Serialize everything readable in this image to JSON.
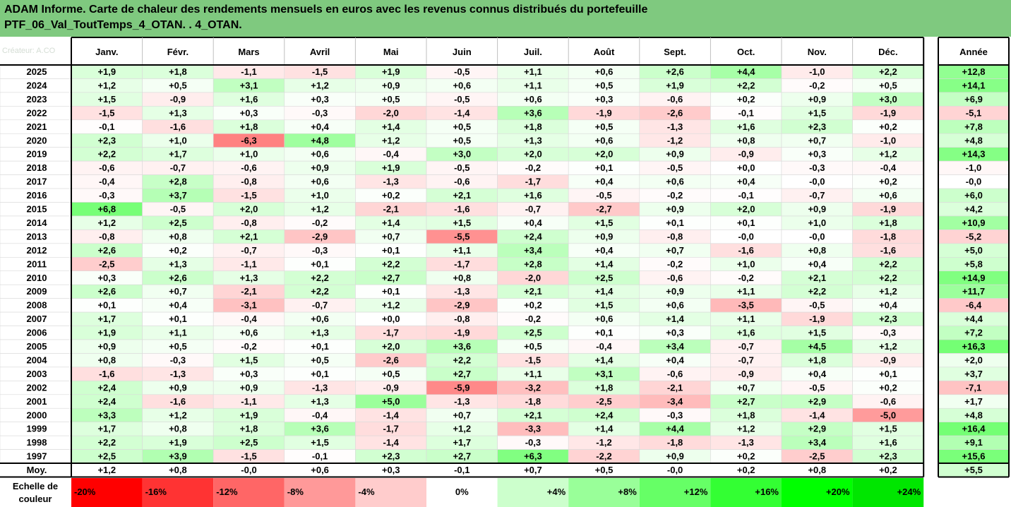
{
  "title": {
    "line1": "ADAM Informe. Carte de chaleur des rendements mensuels en euros avec les revenus connus distribués du portefeuille",
    "line2": "PTF_06_Val_ToutTemps_4_OTAN. . 4_OTAN."
  },
  "watermark": "Créateur: A.CO",
  "chart_data": {
    "type": "heatmap",
    "months": [
      "Janv.",
      "Févr.",
      "Mars",
      "Avril",
      "Mai",
      "Juin",
      "Juil.",
      "Août",
      "Sept.",
      "Oct.",
      "Nov.",
      "Déc."
    ],
    "year_header": "Année",
    "rows": [
      {
        "year": "2025",
        "values": [
          "+1,9",
          "+1,8",
          "-1,1",
          "-1,5",
          "+1,9",
          "-0,5",
          "+1,1",
          "+0,6",
          "+2,6",
          "+4,4",
          "-1,0",
          "+2,2"
        ],
        "annual": "+12,8"
      },
      {
        "year": "2024",
        "values": [
          "+1,2",
          "+0,5",
          "+3,1",
          "+1,2",
          "+0,9",
          "+0,6",
          "+1,1",
          "+0,5",
          "+1,9",
          "+2,2",
          "-0,2",
          "+0,5"
        ],
        "annual": "+14,1"
      },
      {
        "year": "2023",
        "values": [
          "+1,5",
          "-0,9",
          "+1,6",
          "+0,3",
          "+0,5",
          "-0,5",
          "+0,6",
          "+0,3",
          "-0,6",
          "+0,2",
          "+0,9",
          "+3,0"
        ],
        "annual": "+6,9"
      },
      {
        "year": "2022",
        "values": [
          "-1,5",
          "+1,3",
          "+0,3",
          "-0,3",
          "-2,0",
          "-1,4",
          "+3,6",
          "-1,9",
          "-2,6",
          "-0,1",
          "+1,5",
          "-1,9"
        ],
        "annual": "-5,1"
      },
      {
        "year": "2021",
        "values": [
          "-0,1",
          "-1,6",
          "+1,8",
          "+0,4",
          "+1,4",
          "+0,5",
          "+1,8",
          "+0,5",
          "-1,3",
          "+1,6",
          "+2,3",
          "+0,2"
        ],
        "annual": "+7,8"
      },
      {
        "year": "2020",
        "values": [
          "+2,3",
          "+1,0",
          "-6,3",
          "+4,8",
          "+1,2",
          "+0,5",
          "+1,3",
          "+0,6",
          "-1,2",
          "+0,8",
          "+0,7",
          "-1,0"
        ],
        "annual": "+4,8"
      },
      {
        "year": "2019",
        "values": [
          "+2,2",
          "+1,7",
          "+1,0",
          "+0,6",
          "-0,4",
          "+3,0",
          "+2,0",
          "+2,0",
          "+0,9",
          "-0,9",
          "+0,3",
          "+1,2"
        ],
        "annual": "+14,3"
      },
      {
        "year": "2018",
        "values": [
          "-0,6",
          "-0,7",
          "-0,6",
          "+0,9",
          "+1,9",
          "-0,5",
          "-0,2",
          "+0,1",
          "-0,5",
          "+0,0",
          "-0,3",
          "-0,4"
        ],
        "annual": "-1,0"
      },
      {
        "year": "2017",
        "values": [
          "-0,4",
          "+2,8",
          "-0,8",
          "+0,6",
          "-1,3",
          "-0,6",
          "-1,7",
          "+0,4",
          "+0,6",
          "+0,4",
          "-0,0",
          "+0,2"
        ],
        "annual": "-0,0"
      },
      {
        "year": "2016",
        "values": [
          "-0,3",
          "+3,7",
          "-1,5",
          "+1,0",
          "+0,2",
          "+2,1",
          "+1,6",
          "-0,5",
          "-0,2",
          "-0,1",
          "-0,7",
          "+0,6"
        ],
        "annual": "+6,0"
      },
      {
        "year": "2015",
        "values": [
          "+6,8",
          "-0,5",
          "+2,0",
          "+1,2",
          "-2,1",
          "-1,6",
          "-0,7",
          "-2,7",
          "+0,9",
          "+2,0",
          "+0,9",
          "-1,9"
        ],
        "annual": "+4,2"
      },
      {
        "year": "2014",
        "values": [
          "+1,2",
          "+2,5",
          "-0,8",
          "-0,2",
          "+1,4",
          "+1,5",
          "+0,4",
          "+1,5",
          "+0,1",
          "+0,1",
          "+1,0",
          "+1,8"
        ],
        "annual": "+10,9"
      },
      {
        "year": "2013",
        "values": [
          "-0,8",
          "+0,8",
          "+2,1",
          "-2,9",
          "+0,7",
          "-5,5",
          "+2,4",
          "+0,9",
          "-0,8",
          "-0,0",
          "-0,0",
          "-1,8"
        ],
        "annual": "-5,2"
      },
      {
        "year": "2012",
        "values": [
          "+2,6",
          "+0,2",
          "-0,7",
          "-0,3",
          "+0,1",
          "+1,1",
          "+3,4",
          "+0,4",
          "+0,7",
          "-1,6",
          "+0,8",
          "-1,6"
        ],
        "annual": "+5,0"
      },
      {
        "year": "2011",
        "values": [
          "-2,5",
          "+1,3",
          "-1,1",
          "+0,1",
          "+2,2",
          "-1,7",
          "+2,8",
          "+1,4",
          "-0,2",
          "+1,0",
          "+0,4",
          "+2,2"
        ],
        "annual": "+5,8"
      },
      {
        "year": "2010",
        "values": [
          "+0,3",
          "+2,6",
          "+1,3",
          "+2,2",
          "+2,7",
          "+0,8",
          "-2,0",
          "+2,5",
          "-0,6",
          "-0,2",
          "+2,1",
          "+2,2"
        ],
        "annual": "+14,9"
      },
      {
        "year": "2009",
        "values": [
          "+2,6",
          "+0,7",
          "-2,1",
          "+2,2",
          "+0,1",
          "-1,3",
          "+2,1",
          "+1,4",
          "+0,9",
          "+1,1",
          "+2,2",
          "+1,2"
        ],
        "annual": "+11,7"
      },
      {
        "year": "2008",
        "values": [
          "+0,1",
          "+0,4",
          "-3,1",
          "-0,7",
          "+1,2",
          "-2,9",
          "+0,2",
          "+1,5",
          "+0,6",
          "-3,5",
          "-0,5",
          "+0,4"
        ],
        "annual": "-6,4"
      },
      {
        "year": "2007",
        "values": [
          "+1,7",
          "+0,1",
          "-0,4",
          "+0,6",
          "+0,0",
          "-0,8",
          "-0,2",
          "+0,6",
          "+1,4",
          "+1,1",
          "-1,9",
          "+2,3"
        ],
        "annual": "+4,4"
      },
      {
        "year": "2006",
        "values": [
          "+1,9",
          "+1,1",
          "+0,6",
          "+1,3",
          "-1,7",
          "-1,9",
          "+2,5",
          "+0,1",
          "+0,3",
          "+1,6",
          "+1,5",
          "-0,3"
        ],
        "annual": "+7,2"
      },
      {
        "year": "2005",
        "values": [
          "+0,9",
          "+0,5",
          "-0,2",
          "+0,1",
          "+2,0",
          "+3,6",
          "+0,5",
          "-0,4",
          "+3,4",
          "-0,7",
          "+4,5",
          "+1,2"
        ],
        "annual": "+16,3"
      },
      {
        "year": "2004",
        "values": [
          "+0,8",
          "-0,3",
          "+1,5",
          "+0,5",
          "-2,6",
          "+2,2",
          "-1,5",
          "+1,4",
          "+0,4",
          "-0,7",
          "+1,8",
          "-0,9"
        ],
        "annual": "+2,0"
      },
      {
        "year": "2003",
        "values": [
          "-1,6",
          "-1,3",
          "+0,3",
          "+0,1",
          "+0,5",
          "+2,7",
          "+1,1",
          "+3,1",
          "-0,6",
          "-0,9",
          "+0,4",
          "+0,1"
        ],
        "annual": "+3,7"
      },
      {
        "year": "2002",
        "values": [
          "+2,4",
          "+0,9",
          "+0,9",
          "-1,3",
          "-0,9",
          "-5,9",
          "-3,2",
          "+1,8",
          "-2,1",
          "+0,7",
          "-0,5",
          "+0,2"
        ],
        "annual": "-7,1"
      },
      {
        "year": "2001",
        "values": [
          "+2,4",
          "-1,6",
          "-1,1",
          "+1,3",
          "+5,0",
          "-1,3",
          "-1,8",
          "-2,5",
          "-3,4",
          "+2,7",
          "+2,9",
          "-0,6"
        ],
        "annual": "+1,7"
      },
      {
        "year": "2000",
        "values": [
          "+3,3",
          "+1,2",
          "+1,9",
          "-0,4",
          "-1,4",
          "+0,7",
          "+2,1",
          "+2,4",
          "-0,3",
          "+1,8",
          "-1,4",
          "-5,0"
        ],
        "annual": "+4,8"
      },
      {
        "year": "1999",
        "values": [
          "+1,7",
          "+0,8",
          "+1,8",
          "+3,6",
          "-1,7",
          "+1,2",
          "-3,3",
          "+1,4",
          "+4,4",
          "+1,2",
          "+2,9",
          "+1,5"
        ],
        "annual": "+16,4"
      },
      {
        "year": "1998",
        "values": [
          "+2,2",
          "+1,9",
          "+2,5",
          "+1,5",
          "-1,4",
          "+1,7",
          "-0,3",
          "-1,2",
          "-1,8",
          "-1,3",
          "+3,4",
          "+1,6"
        ],
        "annual": "+9,1"
      },
      {
        "year": "1997",
        "values": [
          "+2,5",
          "+3,9",
          "-1,5",
          "-0,1",
          "+2,3",
          "+2,7",
          "+6,3",
          "-2,2",
          "+0,9",
          "+0,2",
          "-2,5",
          "+2,3"
        ],
        "annual": "+15,6"
      }
    ],
    "average": {
      "label": "Moy.",
      "values": [
        "+1,2",
        "+0,8",
        "-0,0",
        "+0,6",
        "+0,3",
        "-0,1",
        "+0,7",
        "+0,5",
        "-0,0",
        "+0,2",
        "+0,8",
        "+0,2"
      ],
      "annual": "+5,5"
    },
    "scale": {
      "label_line1": "Echelle de",
      "label_line2": "couleur",
      "steps": [
        {
          "label": "-20%",
          "color": "#ff0000"
        },
        {
          "label": "-16%",
          "color": "#ff3333"
        },
        {
          "label": "-12%",
          "color": "#ff6666"
        },
        {
          "label": "-8%",
          "color": "#ff9999"
        },
        {
          "label": "-4%",
          "color": "#ffcccc"
        },
        {
          "label": "0%",
          "color": "#ffffff"
        },
        {
          "label": "+4%",
          "color": "#ccffcc"
        },
        {
          "label": "+8%",
          "color": "#99ff99"
        },
        {
          "label": "+12%",
          "color": "#66ff66"
        },
        {
          "label": "+16%",
          "color": "#33ff33"
        },
        {
          "label": "+20%",
          "color": "#00ff00"
        },
        {
          "label": "+24%",
          "color": "#00e600"
        }
      ]
    }
  },
  "colors": {
    "title_background": "#7fc97f",
    "negative_base": "#ff0000",
    "positive_base": "#00ff00"
  }
}
